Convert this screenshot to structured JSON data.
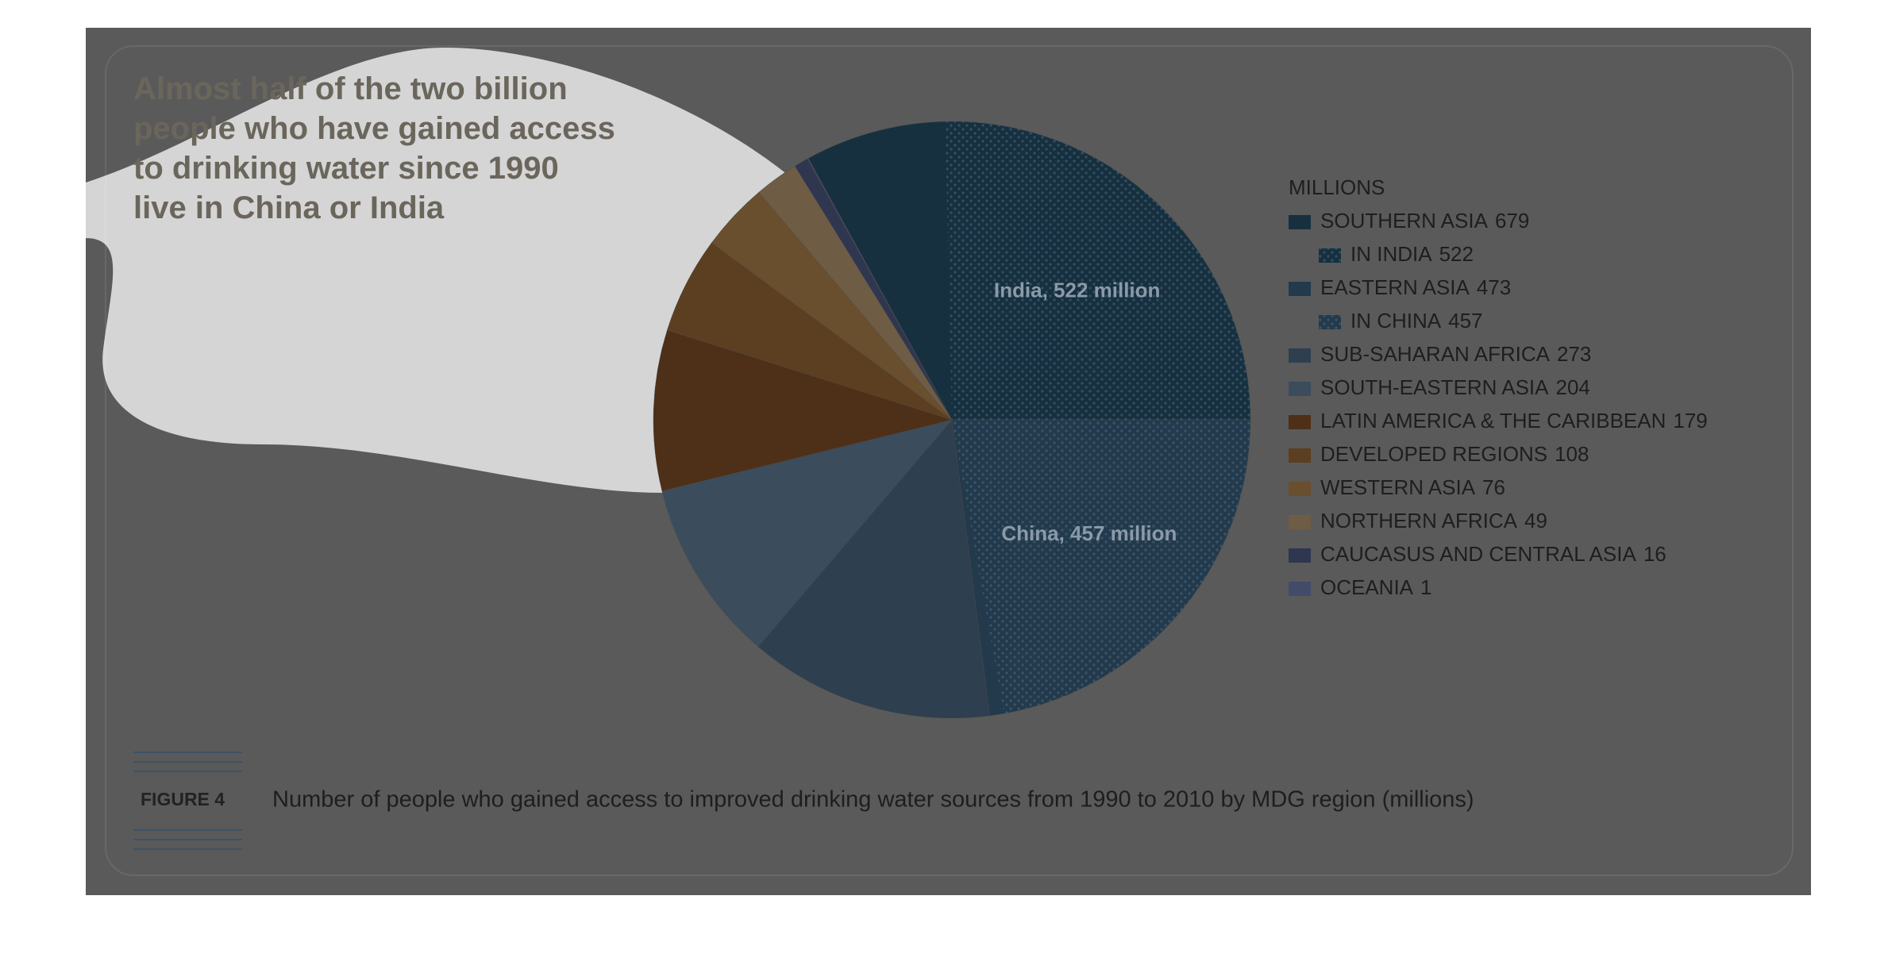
{
  "chart_data": {
    "type": "pie",
    "title": "Almost half of the two billion people who have gained access to drinking water since 1990 live in China or India",
    "legend_title": "MILLIONS",
    "categories": [
      "SOUTHERN ASIA",
      "EASTERN ASIA",
      "SUB-SAHARAN AFRICA",
      "SOUTH-EASTERN ASIA",
      "LATIN AMERICA & THE CARIBBEAN",
      "DEVELOPED REGIONS",
      "WESTERN ASIA",
      "NORTHERN AFRICA",
      "CAUCASUS AND CENTRAL ASIA",
      "OCEANIA"
    ],
    "values": [
      679,
      473,
      273,
      204,
      179,
      108,
      76,
      49,
      16,
      1
    ],
    "colors": [
      "#17303f",
      "#233a4c",
      "#2e3f4f",
      "#3b4c5c",
      "#4e2f17",
      "#5c3f20",
      "#6a4f2e",
      "#6f5c45",
      "#2f3650",
      "#434b6a"
    ],
    "details": [
      {
        "name": "IN INDIA",
        "value": 522,
        "label": "India, 522 million"
      },
      {
        "name": "IN CHINA",
        "value": 457,
        "label": "China, 457 million"
      }
    ],
    "figure_label": "FIGURE 4",
    "caption": "Number of people who gained access to improved drinking water sources from 1990 to 2010 by MDG region (millions)"
  }
}
